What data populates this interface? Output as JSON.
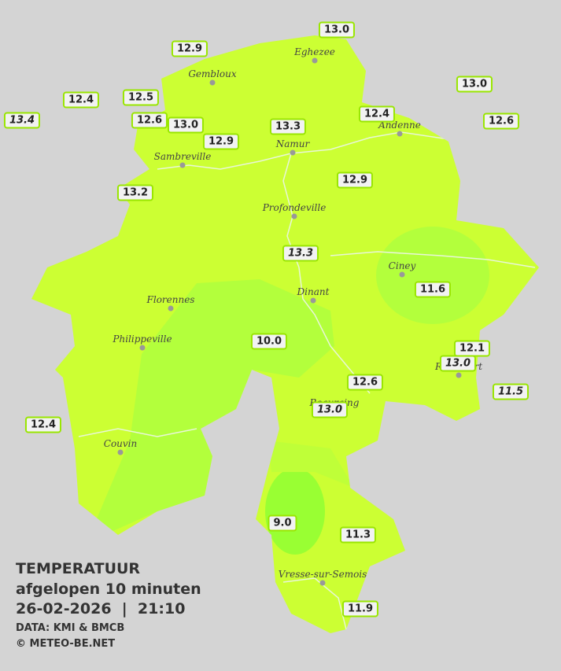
{
  "legend": {
    "title": "TEMPERATUUR",
    "subtitle": "afgelopen 10 minuten",
    "datetime": "26-02-2026  |  21:10",
    "source": "DATA: KMI & BMCB",
    "copyright": "© METEO-BE.NET"
  },
  "cities": [
    "Eghezee",
    "Gembloux",
    "Andenne",
    "Namur",
    "Sambreville",
    "Profondeville",
    "Ciney",
    "Dinant",
    "Florennes",
    "Philippeville",
    "Rochefort",
    "Beauraing",
    "Couvin",
    "Vresse-sur-Semois"
  ],
  "readings": [
    {
      "value": "13.0"
    },
    {
      "value": "12.9"
    },
    {
      "value": "13.0"
    },
    {
      "value": "12.4"
    },
    {
      "value": "12.5"
    },
    {
      "value": "13.4",
      "italic": true
    },
    {
      "value": "12.6"
    },
    {
      "value": "13.0"
    },
    {
      "value": "13.3"
    },
    {
      "value": "12.4"
    },
    {
      "value": "12.6"
    },
    {
      "value": "12.9"
    },
    {
      "value": "13.2"
    },
    {
      "value": "12.9"
    },
    {
      "value": "13.3",
      "italic": true
    },
    {
      "value": "11.6"
    },
    {
      "value": "10.0"
    },
    {
      "value": "12.1"
    },
    {
      "value": "13.0",
      "italic": true
    },
    {
      "value": "11.5",
      "italic": true
    },
    {
      "value": "12.6"
    },
    {
      "value": "13.0",
      "italic": true
    },
    {
      "value": "12.4"
    },
    {
      "value": "9.0"
    },
    {
      "value": "11.3"
    },
    {
      "value": "11.9"
    }
  ]
}
